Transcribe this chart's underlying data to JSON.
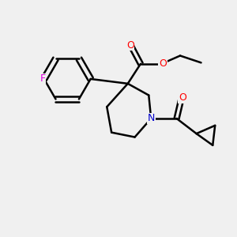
{
  "background_color": "#f0f0f0",
  "bond_color": "#000000",
  "bond_width": 1.8,
  "atom_colors": {
    "F": "#dd00dd",
    "O": "#ff0000",
    "N": "#0000cc"
  },
  "figsize": [
    3.0,
    3.0
  ],
  "dpi": 100,
  "xlim": [
    0,
    10
  ],
  "ylim": [
    0,
    10
  ]
}
